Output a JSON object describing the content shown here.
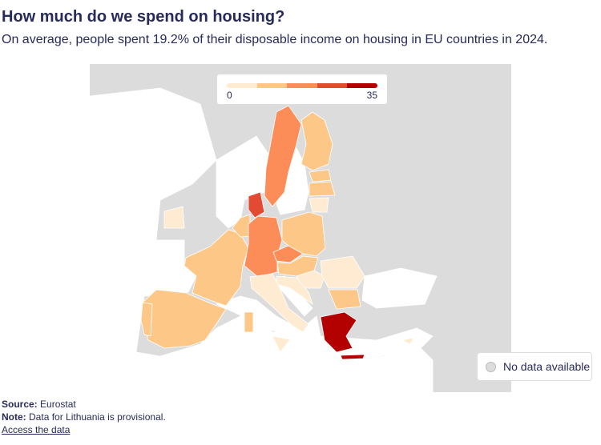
{
  "title": "How much do we spend on housing?",
  "subtitle": "On average, people spent 19.2% of their disposable income on housing in EU countries in 2024.",
  "legend": {
    "min": "0",
    "max": "35",
    "colors": [
      "#feebd2",
      "#fdc887",
      "#fc8d59",
      "#e34a33",
      "#b30000"
    ],
    "no_data": "No data available",
    "no_data_color": "#dcdcdc"
  },
  "footer": {
    "source_label": "Source:",
    "source": "Eurostat",
    "note_label": "Note:",
    "note": "Data for Lithuania is provisional.",
    "link": "Access the data"
  }
}
